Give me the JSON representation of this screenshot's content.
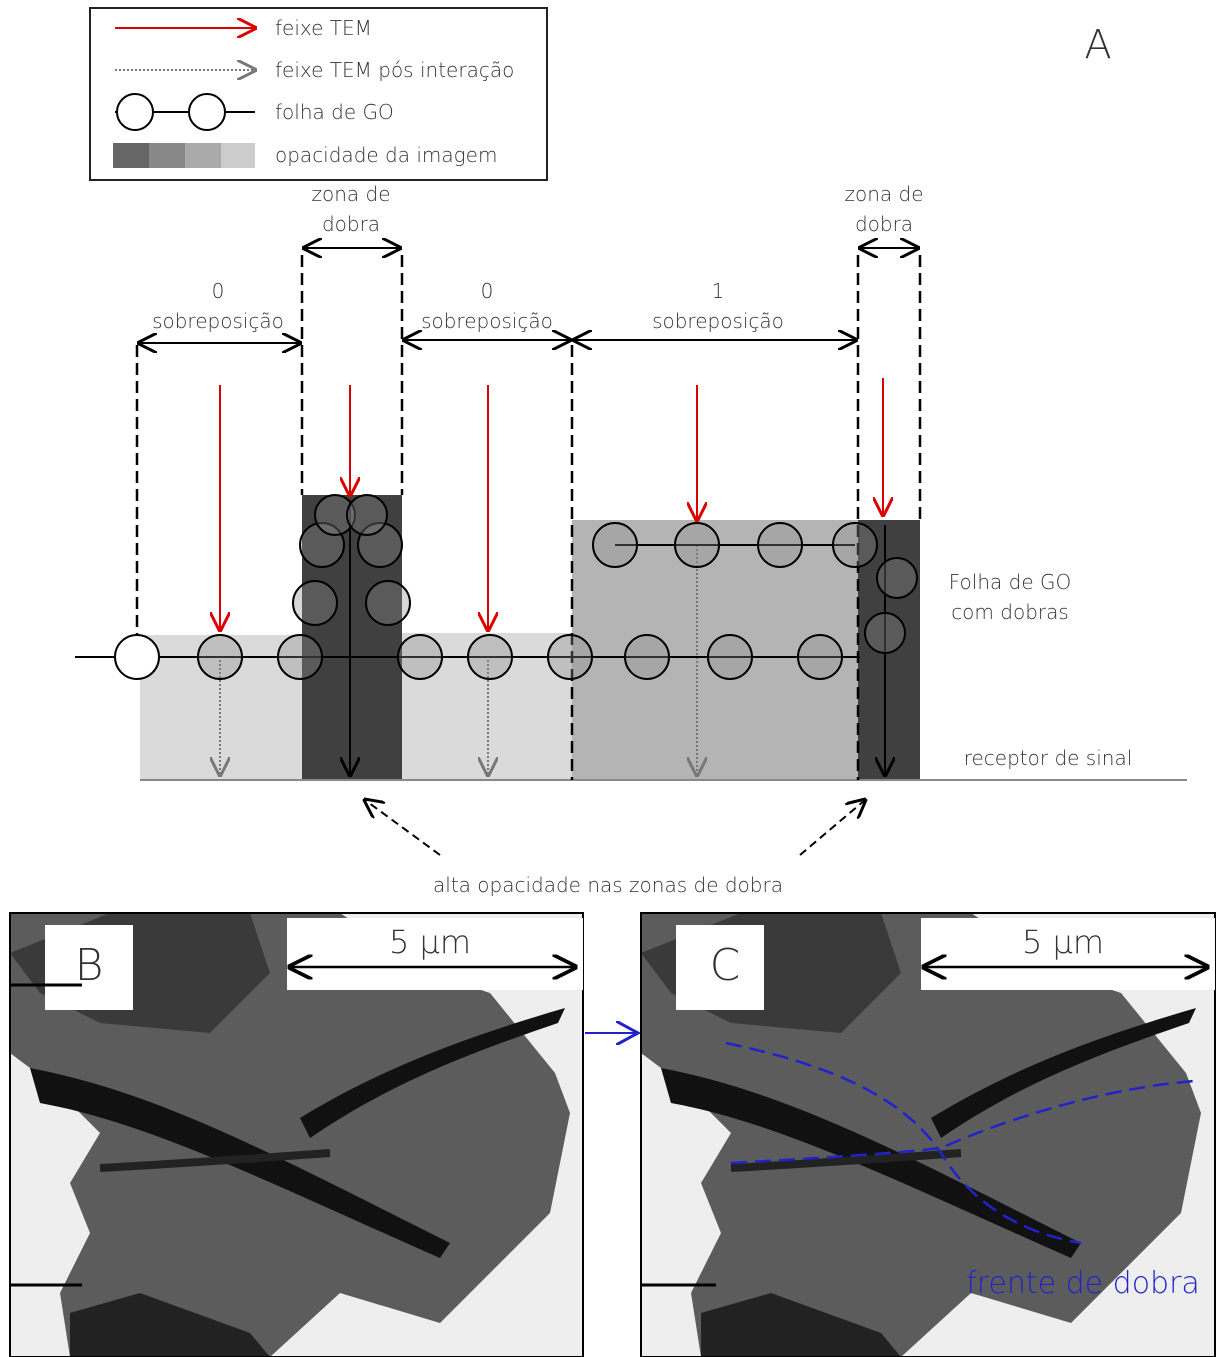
{
  "legend": {
    "items": [
      "feixe TEM",
      "feixe TEM pós interação",
      "folha de GO",
      "opacidade da imagem"
    ]
  },
  "panel_a_label": "A",
  "zones": [
    {
      "lines": [
        "0",
        "sobreposição"
      ]
    },
    {
      "lines": [
        "zona de",
        "dobra"
      ]
    },
    {
      "lines": [
        "0",
        "sobreposição"
      ]
    },
    {
      "lines": [
        "1",
        "sobreposição"
      ]
    },
    {
      "lines": [
        "zona de",
        "dobra"
      ]
    }
  ],
  "sheet_label": {
    "lines": [
      "Folha de GO",
      "com dobras"
    ]
  },
  "receptor": "receptor de sinal",
  "annotation": "alta opacidade nas zonas de dobra",
  "panels": [
    {
      "label": "B",
      "scale": "5 µm"
    },
    {
      "label": "C",
      "scale": "5 µm",
      "annotation": "frente de dobra"
    }
  ]
}
